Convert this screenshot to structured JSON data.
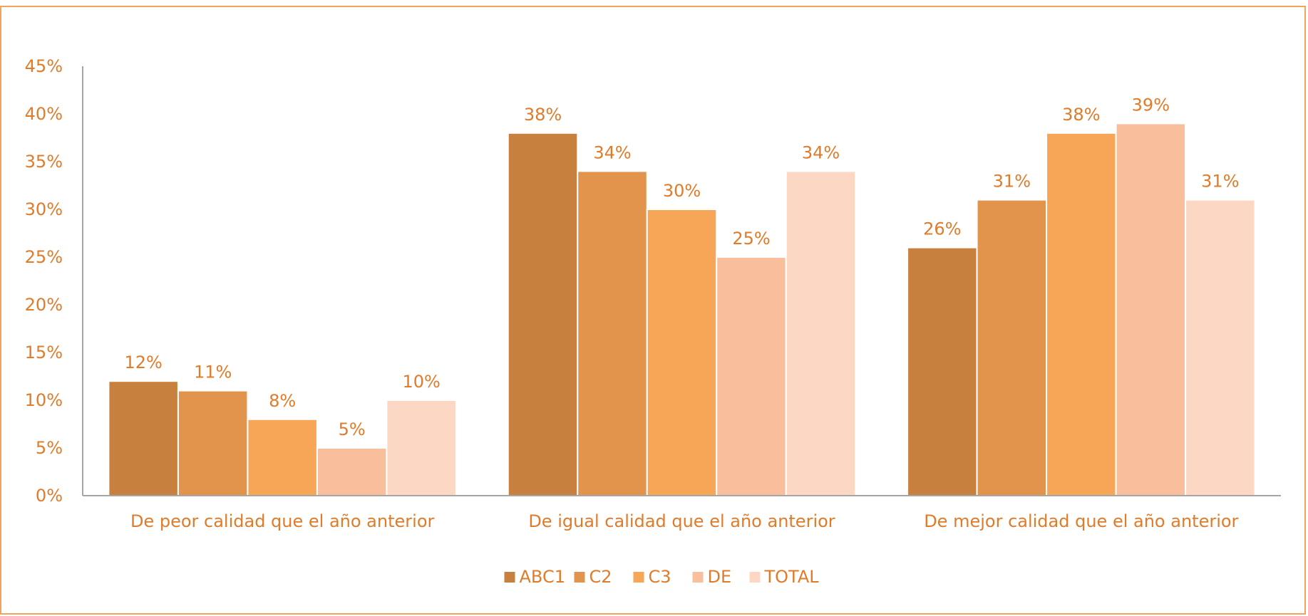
{
  "chart_data": {
    "type": "bar",
    "title": "",
    "xlabel": "",
    "ylabel": "",
    "ylim": [
      0,
      45
    ],
    "yticks": [
      "0%",
      "5%",
      "10%",
      "15%",
      "20%",
      "25%",
      "30%",
      "35%",
      "40%",
      "45%"
    ],
    "categories": [
      "De peor calidad que el año anterior",
      "De igual calidad que el año anterior",
      "De mejor calidad que el año anterior"
    ],
    "series": [
      {
        "name": "ABC1",
        "color": "#c8803e",
        "values": [
          12,
          38,
          26
        ]
      },
      {
        "name": "C2",
        "color": "#e2944c",
        "values": [
          11,
          34,
          31
        ]
      },
      {
        "name": "C3",
        "color": "#f6a656",
        "values": [
          8,
          30,
          38
        ]
      },
      {
        "name": "DE",
        "color": "#f9bf9c",
        "values": [
          5,
          25,
          39
        ]
      },
      {
        "name": "TOTAL",
        "color": "#fcd8c4",
        "values": [
          10,
          34,
          31
        ]
      }
    ],
    "value_suffix": "%",
    "grid": false,
    "legend_position": "bottom"
  },
  "colors": {
    "text": "#e07b2a",
    "axis": "#a6a6a6",
    "border": "#f4a35a"
  }
}
